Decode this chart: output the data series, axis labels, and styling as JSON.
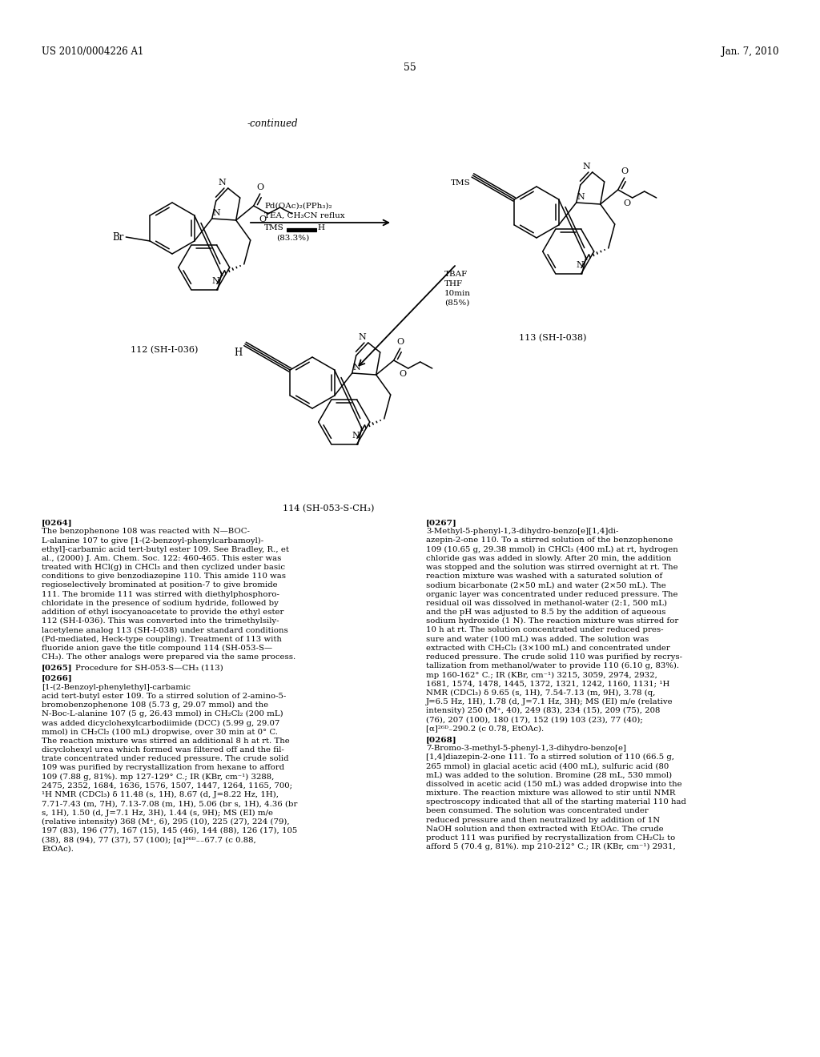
{
  "page_number": "55",
  "patent_number": "US 2010/0004226 A1",
  "patent_date": "Jan. 7, 2010",
  "continued_label": "-continued",
  "compound_112": "112 (SH-I-036)",
  "compound_113": "113 (SH-I-038)",
  "compound_114": "114 (SH-053-S-CH₃)",
  "bg_color": "#ffffff",
  "text_color": "#000000"
}
